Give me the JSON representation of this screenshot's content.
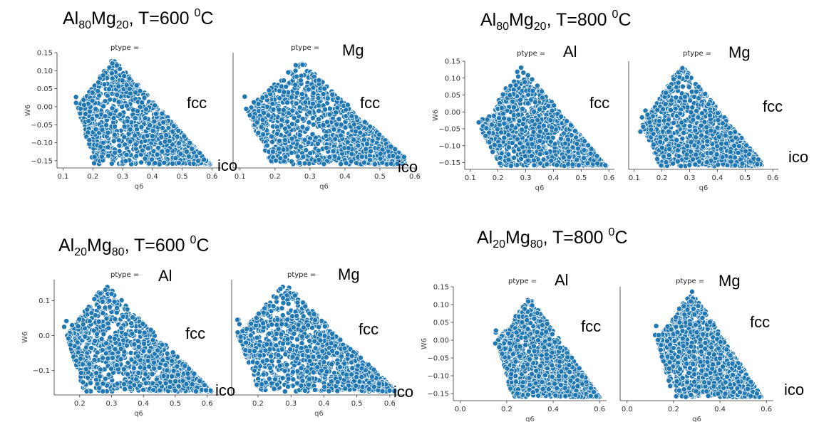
{
  "chart_data": [
    {
      "title": "Al80Mg20, T=600 0C",
      "title_parts": {
        "a": "Al",
        "a_sub": "80",
        "b": "Mg",
        "b_sub": "20",
        "temp": ", T=600 ",
        "deg": "0",
        "unit": "C"
      },
      "panels": [
        {
          "ptype_label": "ptype =",
          "element": "",
          "annotations": [
            "fcc",
            "ico"
          ],
          "type": "scatter",
          "xlabel": "q6",
          "ylabel": "W6",
          "xlim": [
            0.08,
            0.63
          ],
          "ylim": [
            -0.17,
            0.15
          ],
          "xticks": [
            0.1,
            0.2,
            0.3,
            0.4,
            0.5,
            0.6
          ],
          "yticks": [
            0.15,
            0.1,
            0.05,
            0.0,
            -0.05,
            -0.1,
            -0.15
          ],
          "xtick_labels": [
            "0.1",
            "0.2",
            "0.3",
            "0.4",
            "0.5",
            "0.6"
          ],
          "ytick_labels": [
            "0.15",
            "0.10",
            "0.05",
            "0.00",
            "−0.05",
            "−0.10",
            "−0.15"
          ],
          "cloud": {
            "left": 0.15,
            "apex_x": 0.27,
            "apex_y": 0.135,
            "right": 0.6,
            "right_y": -0.165,
            "bottom_y": -0.16,
            "left_y": 0.0
          }
        },
        {
          "ptype_label": "ptype =",
          "element": "Mg",
          "annotations": [
            "fcc",
            "ico"
          ],
          "type": "scatter",
          "xlabel": "q6",
          "ylabel": "",
          "xlim": [
            0.08,
            0.6
          ],
          "ylim": [
            -0.17,
            0.15
          ],
          "xticks": [
            0.1,
            0.2,
            0.3,
            0.4,
            0.5,
            0.6
          ],
          "yticks": [],
          "xtick_labels": [
            "0.1",
            "0.2",
            "0.3",
            "0.4",
            "0.5",
            "0.6"
          ],
          "ytick_labels": [],
          "cloud": {
            "left": 0.12,
            "apex_x": 0.27,
            "apex_y": 0.13,
            "right": 0.57,
            "right_y": -0.14,
            "bottom_y": -0.16,
            "left_y": -0.01
          }
        }
      ]
    },
    {
      "title": "Al80Mg20, T=800 0C",
      "title_parts": {
        "a": "Al",
        "a_sub": "80",
        "b": "Mg",
        "b_sub": "20",
        "temp": ", T=800 ",
        "deg": "0",
        "unit": "C"
      },
      "panels": [
        {
          "ptype_label": "ptype =",
          "element": "Al",
          "annotations": [
            "fcc",
            ""
          ],
          "type": "scatter",
          "xlabel": "q6",
          "ylabel": "W6",
          "xlim": [
            0.08,
            0.62
          ],
          "ylim": [
            -0.17,
            0.15
          ],
          "xticks": [
            0.1,
            0.2,
            0.3,
            0.4,
            0.5,
            0.6
          ],
          "yticks": [
            0.15,
            0.1,
            0.05,
            0.0,
            -0.05,
            -0.1,
            -0.15
          ],
          "xtick_labels": [
            "0.1",
            "0.2",
            "0.3",
            "0.4",
            "0.5",
            "0.6"
          ],
          "ytick_labels": [
            "0.15",
            "0.10",
            "0.05",
            "0.00",
            "−0.05",
            "−0.10",
            "−0.15"
          ],
          "cloud": {
            "left": 0.14,
            "apex_x": 0.28,
            "apex_y": 0.14,
            "right": 0.59,
            "right_y": -0.16,
            "bottom_y": -0.16,
            "left_y": -0.05
          }
        },
        {
          "ptype_label": "ptype =",
          "element": "Mg",
          "annotations": [
            "fcc",
            "ico"
          ],
          "type": "scatter",
          "xlabel": "q6",
          "ylabel": "",
          "xlim": [
            0.08,
            0.62
          ],
          "ylim": [
            -0.17,
            0.15
          ],
          "xticks": [
            0.1,
            0.2,
            0.3,
            0.4,
            0.5,
            0.6
          ],
          "yticks": [],
          "xtick_labels": [
            "0.1",
            "0.2",
            "0.3",
            "0.4",
            "0.5",
            "0.6"
          ],
          "ytick_labels": [],
          "cloud": {
            "left": 0.13,
            "apex_x": 0.27,
            "apex_y": 0.14,
            "right": 0.56,
            "right_y": -0.15,
            "bottom_y": -0.16,
            "left_y": -0.04
          }
        }
      ]
    },
    {
      "title": "Al20Mg80, T=600 0C",
      "title_parts": {
        "a": "Al",
        "a_sub": "20",
        "b": "Mg",
        "b_sub": "80",
        "temp": ", T=600 ",
        "deg": "0",
        "unit": "C"
      },
      "panels": [
        {
          "ptype_label": "ptype =",
          "element": "Al",
          "annotations": [
            "fcc",
            "ico"
          ],
          "type": "scatter",
          "xlabel": "q6",
          "ylabel": "W6",
          "xlim": [
            0.12,
            0.65
          ],
          "ylim": [
            -0.17,
            0.16
          ],
          "xticks": [
            0.2,
            0.3,
            0.4,
            0.5,
            0.6
          ],
          "yticks": [
            0.1,
            0.0,
            -0.1
          ],
          "xtick_labels": [
            "0.2",
            "0.3",
            "0.4",
            "0.5",
            "0.6"
          ],
          "ytick_labels": [
            "0.1",
            "0.0",
            "−0.1"
          ],
          "cloud": {
            "left": 0.16,
            "apex_x": 0.28,
            "apex_y": 0.15,
            "right": 0.62,
            "right_y": -0.165,
            "bottom_y": -0.16,
            "left_y": 0.0
          }
        },
        {
          "ptype_label": "ptype =",
          "element": "Mg",
          "annotations": [
            "fcc",
            "ico"
          ],
          "type": "scatter",
          "xlabel": "q6",
          "ylabel": "",
          "xlim": [
            0.12,
            0.65
          ],
          "ylim": [
            -0.17,
            0.16
          ],
          "xticks": [
            0.2,
            0.3,
            0.4,
            0.5,
            0.6
          ],
          "yticks": [],
          "xtick_labels": [
            "0.2",
            "0.3",
            "0.4",
            "0.5",
            "0.6"
          ],
          "ytick_labels": [],
          "cloud": {
            "left": 0.14,
            "apex_x": 0.28,
            "apex_y": 0.15,
            "right": 0.62,
            "right_y": -0.16,
            "bottom_y": -0.16,
            "left_y": 0.0
          }
        }
      ]
    },
    {
      "title": "Al20Mg80, T=800 0C",
      "title_parts": {
        "a": "Al",
        "a_sub": "20",
        "b": "Mg",
        "b_sub": "80",
        "temp": ", T=800 ",
        "deg": "0",
        "unit": "C"
      },
      "panels": [
        {
          "ptype_label": "ptype =",
          "element": "Al",
          "annotations": [
            "fcc",
            ""
          ],
          "type": "scatter",
          "xlabel": "q6",
          "ylabel": "W6",
          "xlim": [
            -0.03,
            0.63
          ],
          "ylim": [
            -0.17,
            0.15
          ],
          "xticks": [
            0.0,
            0.2,
            0.4,
            0.6
          ],
          "yticks": [
            0.15,
            0.1,
            0.05,
            0.0,
            -0.05,
            -0.1,
            -0.15
          ],
          "xtick_labels": [
            "0.0",
            "0.2",
            "0.4",
            "0.6"
          ],
          "ytick_labels": [
            "0.15",
            "0.10",
            "0.05",
            "0.00",
            "−0.05",
            "−0.10",
            "−0.15"
          ],
          "cloud": {
            "left": 0.16,
            "apex_x": 0.3,
            "apex_y": 0.12,
            "right": 0.6,
            "right_y": -0.16,
            "bottom_y": -0.16,
            "left_y": 0.0
          }
        },
        {
          "ptype_label": "ptype =",
          "element": "Mg",
          "annotations": [
            "fcc",
            "ico"
          ],
          "type": "scatter",
          "xlabel": "q6",
          "ylabel": "",
          "xlim": [
            -0.03,
            0.63
          ],
          "ylim": [
            -0.17,
            0.15
          ],
          "xticks": [
            0.0,
            0.2,
            0.4,
            0.6
          ],
          "yticks": [],
          "xtick_labels": [
            "0.0",
            "0.2",
            "0.4",
            "0.6"
          ],
          "ytick_labels": [],
          "cloud": {
            "left": 0.13,
            "apex_x": 0.28,
            "apex_y": 0.14,
            "right": 0.58,
            "right_y": -0.16,
            "bottom_y": -0.16,
            "left_y": 0.0
          }
        }
      ]
    }
  ],
  "ico_label": "ico"
}
